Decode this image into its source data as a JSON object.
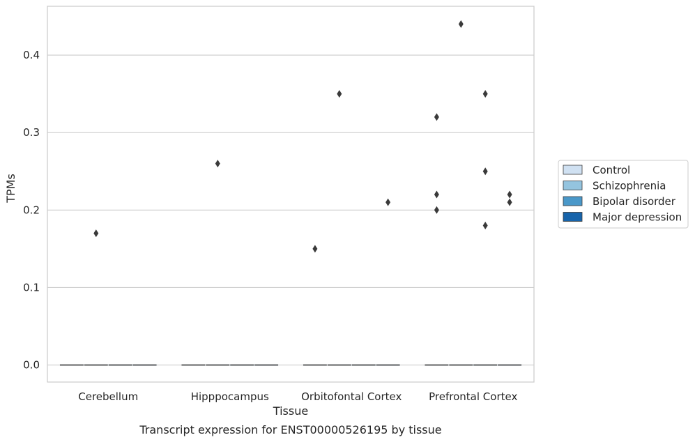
{
  "chart_data": {
    "type": "box",
    "title": "",
    "caption": "Transcript expression for ENST00000526195 by tissue",
    "xlabel": "Tissue",
    "ylabel": "TPMs",
    "ylim": [
      -0.022,
      0.463
    ],
    "yticks": [
      0.0,
      0.1,
      0.2,
      0.3,
      0.4
    ],
    "ytick_labels": [
      "0.0",
      "0.1",
      "0.2",
      "0.3",
      "0.4"
    ],
    "grid": "horizontal",
    "legend_position": "right",
    "categories": [
      "Cerebellum",
      "Hipppocampus",
      "Orbitofontal Cortex",
      "Prefrontal Cortex"
    ],
    "series": [
      {
        "name": "Control",
        "color": "#d0e1f2",
        "medians": [
          0,
          0,
          0,
          0
        ],
        "outliers": [
          [],
          [],
          [
            0.15
          ],
          [
            0.32,
            0.22,
            0.2
          ]
        ]
      },
      {
        "name": "Schizophrenia",
        "color": "#94c4df",
        "medians": [
          0,
          0,
          0,
          0
        ],
        "outliers": [
          [
            0.17
          ],
          [
            0.26
          ],
          [
            0.35
          ],
          [
            0.44
          ]
        ]
      },
      {
        "name": "Bipolar disorder",
        "color": "#4a98c9",
        "medians": [
          0,
          0,
          0,
          0
        ],
        "outliers": [
          [],
          [],
          [],
          [
            0.35,
            0.25,
            0.18
          ]
        ]
      },
      {
        "name": "Major depression",
        "color": "#1764ab",
        "medians": [
          0,
          0,
          0,
          0
        ],
        "outliers": [
          [],
          [],
          [
            0.21
          ],
          [
            0.22,
            0.21
          ]
        ]
      }
    ],
    "colors": {
      "grid": "#cccccc",
      "outlier": "#3a3a3a",
      "median": "#3a3a3a",
      "frame": "#cccccc"
    }
  }
}
